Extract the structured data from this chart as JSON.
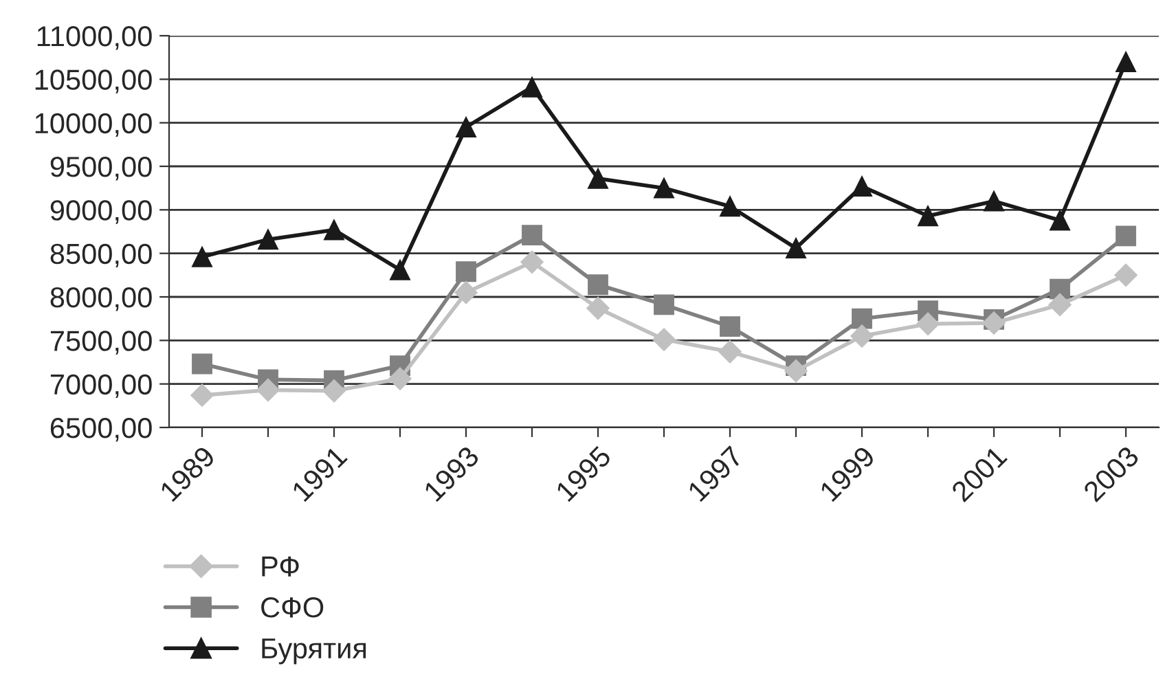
{
  "chart_data": {
    "type": "line",
    "categories": [
      "1989",
      null,
      "1991",
      null,
      "1993",
      null,
      "1995",
      null,
      "1997",
      null,
      "1999",
      null,
      "2001",
      null,
      "2003"
    ],
    "series": [
      {
        "name": "РФ",
        "color": "#c0c0c0",
        "marker": "diamond",
        "values": [
          6870,
          6930,
          6920,
          7060,
          8050,
          8400,
          7870,
          7510,
          7370,
          7150,
          7550,
          7690,
          7700,
          7910,
          8250
        ]
      },
      {
        "name": "СФО",
        "color": "#808080",
        "marker": "square",
        "values": [
          7230,
          7050,
          7040,
          7210,
          8290,
          8710,
          8140,
          7910,
          7660,
          7210,
          7750,
          7840,
          7740,
          8090,
          8700
        ]
      },
      {
        "name": "Бурятия",
        "color": "#1a1a1a",
        "marker": "triangle",
        "values": [
          8460,
          8660,
          8770,
          8310,
          9950,
          10410,
          9360,
          9250,
          9040,
          8560,
          9270,
          8930,
          9100,
          8880,
          10700
        ]
      }
    ],
    "ylim": [
      6500,
      11000
    ],
    "yticks": [
      {
        "value": 6500,
        "label": "6500,00"
      },
      {
        "value": 7000,
        "label": "7000,00"
      },
      {
        "value": 7500,
        "label": "7500,00"
      },
      {
        "value": 8000,
        "label": "8000,00"
      },
      {
        "value": 8500,
        "label": "8500,00"
      },
      {
        "value": 9000,
        "label": "9000,00"
      },
      {
        "value": 9500,
        "label": "9500,00"
      },
      {
        "value": 10000,
        "label": "10000,00"
      },
      {
        "value": 10500,
        "label": "10500,00"
      },
      {
        "value": 11000,
        "label": "11000,00"
      }
    ],
    "grid": "y",
    "legend": "bottom left",
    "line_style": "solid"
  }
}
